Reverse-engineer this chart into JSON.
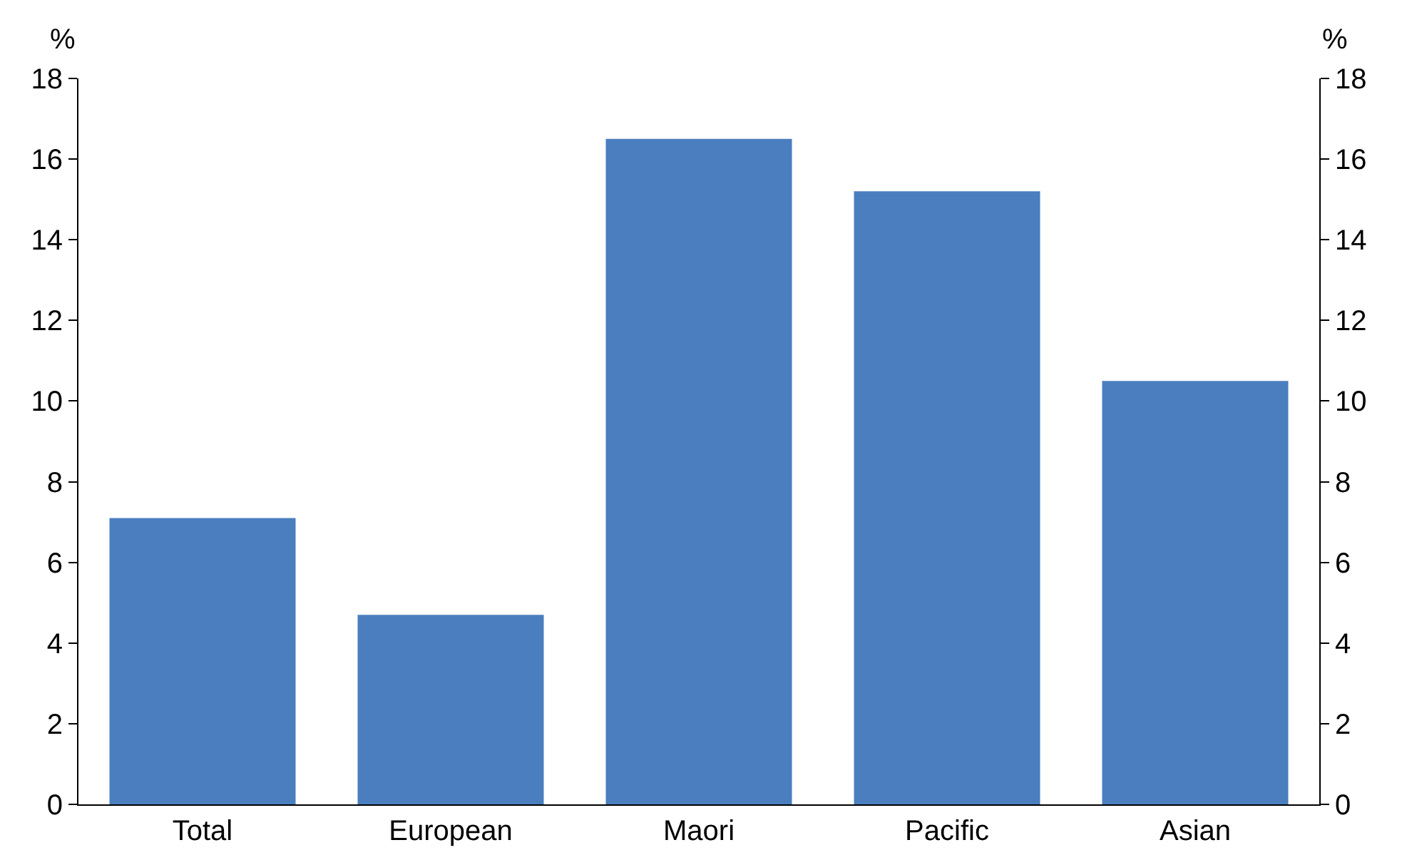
{
  "chart_data": {
    "type": "bar",
    "categories": [
      "Total",
      "European",
      "Maori",
      "Pacific",
      "Asian"
    ],
    "values": [
      7.1,
      4.7,
      16.5,
      15.2,
      10.5
    ],
    "color": "#4a7ebf",
    "ylabel": "%",
    "y2label": "%",
    "ylim": [
      0,
      18
    ],
    "yticks": [
      0,
      2,
      4,
      6,
      8,
      10,
      12,
      14,
      16,
      18
    ],
    "y2lim": [
      0,
      18
    ],
    "y2ticks": [
      0,
      2,
      4,
      6,
      8,
      10,
      12,
      14,
      16,
      18
    ]
  }
}
